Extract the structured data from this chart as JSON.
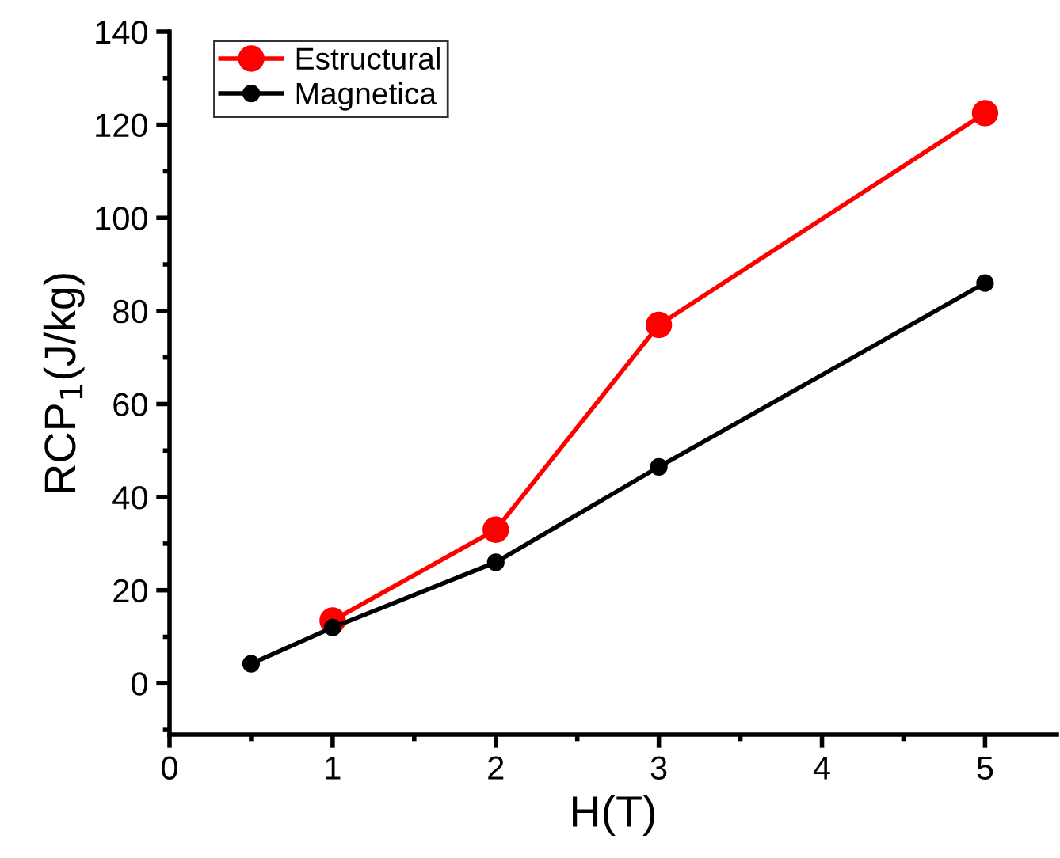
{
  "chart_data": {
    "type": "line",
    "xlabel": "H(T)",
    "ylabel": "RCP$_{1}$(J/kg)",
    "xlim": [
      0,
      5.44
    ],
    "xticks": [
      0,
      1,
      2,
      3,
      4,
      5
    ],
    "ylim": [
      -11,
      140
    ],
    "yticks": [
      0,
      20,
      40,
      60,
      80,
      100,
      120,
      140
    ],
    "marker": "circle",
    "line_style": "solid",
    "legend": "top left",
    "grid": false,
    "series": [
      {
        "name": "Estructural",
        "color": "#ff0000",
        "x": [
          1,
          2,
          3,
          5
        ],
        "values": [
          13.5,
          33,
          77,
          122.5
        ]
      },
      {
        "name": "Magnetica",
        "color": "#000000",
        "x": [
          0.5,
          1,
          2,
          3,
          5
        ],
        "values": [
          4.2,
          12,
          26,
          46.5,
          86
        ]
      }
    ]
  }
}
